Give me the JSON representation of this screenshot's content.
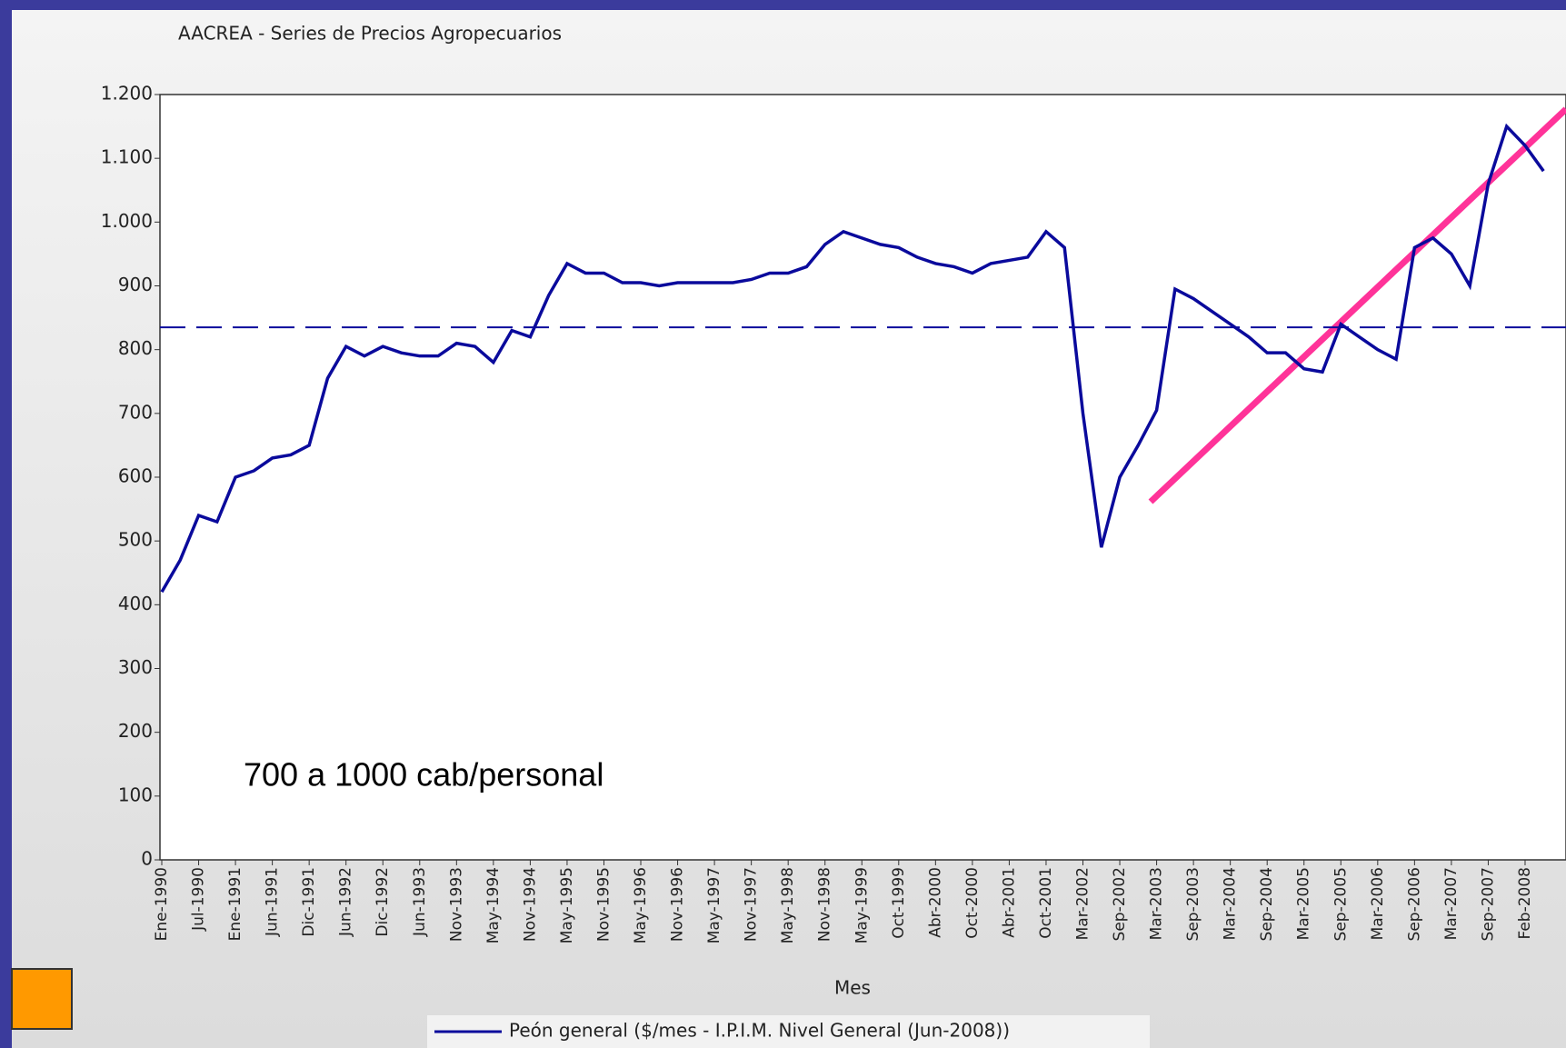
{
  "chart_data": {
    "type": "line",
    "title": "AACREA - Series de Precios Agropecuarios",
    "x_label": "Mes",
    "annotation": "700 a 1000 cab/personal",
    "categories": [
      "Ene-1990",
      null,
      "Jul-1990",
      null,
      "Ene-1991",
      null,
      "Jun-1991",
      null,
      "Dic-1991",
      null,
      "Jun-1992",
      null,
      "Dic-1992",
      null,
      "Jun-1993",
      null,
      "Nov-1993",
      null,
      "May-1994",
      null,
      "Nov-1994",
      null,
      "May-1995",
      null,
      "Nov-1995",
      null,
      "May-1996",
      null,
      "Nov-1996",
      null,
      "May-1997",
      null,
      "Nov-1997",
      null,
      "May-1998",
      null,
      "Nov-1998",
      null,
      "May-1999",
      null,
      "Oct-1999",
      null,
      "Abr-2000",
      null,
      "Oct-2000",
      null,
      "Abr-2001",
      null,
      "Oct-2001",
      null,
      "Mar-2002",
      null,
      "Sep-2002",
      null,
      "Mar-2003",
      null,
      "Sep-2003",
      null,
      "Mar-2004",
      null,
      "Sep-2004",
      null,
      "Mar-2005",
      null,
      "Sep-2005",
      null,
      "Mar-2006",
      null,
      "Sep-2006",
      null,
      "Mar-2007",
      null,
      "Sep-2007",
      null,
      "Feb-2008",
      null
    ],
    "series": [
      {
        "name": "Peón general ($/mes - I.P.I.M. Nivel General (Jun-2008))",
        "color": "#0a0a9c",
        "values": [
          420,
          470,
          540,
          530,
          600,
          610,
          630,
          635,
          650,
          755,
          805,
          790,
          805,
          795,
          790,
          790,
          810,
          805,
          780,
          830,
          820,
          885,
          935,
          920,
          920,
          905,
          905,
          900,
          905,
          905,
          905,
          905,
          910,
          920,
          920,
          930,
          965,
          985,
          975,
          965,
          960,
          945,
          935,
          930,
          920,
          935,
          940,
          945,
          985,
          960,
          700,
          490,
          600,
          650,
          705,
          895,
          880,
          860,
          840,
          820,
          795,
          795,
          770,
          765,
          840,
          820,
          800,
          785,
          960,
          975,
          950,
          900,
          1060,
          1150,
          1120,
          1080
        ]
      }
    ],
    "reference_line": 835,
    "ylim": [
      0,
      1200
    ],
    "yticks": [
      0,
      100,
      200,
      300,
      400,
      500,
      600,
      700,
      800,
      900,
      {
        "value": 1000,
        "label": "1.000"
      },
      {
        "value": 1100,
        "label": "1.100"
      },
      {
        "value": 1200,
        "label": "1.200"
      }
    ]
  }
}
